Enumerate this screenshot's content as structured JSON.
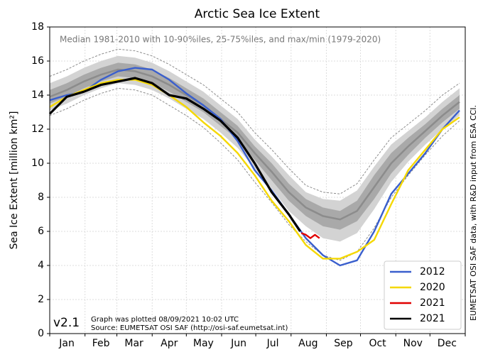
{
  "chart_data": {
    "type": "line",
    "title": "Arctic Sea Ice Extent",
    "subtitle": "Median 1981-2010 with 10-90%iles, 25-75%iles, and max/min (1979-2020)",
    "ylabel": "Sea Ice Extent [million km²]",
    "side_note": "EUMETSAT OSI SAF data, with R&D input from ESA CCI.",
    "version": "v2.1",
    "footnotes": [
      "Graph was plotted 08/09/2021 10:02 UTC",
      "Source: EUMETSAT OSI SAF (http://osi-saf.eumetsat.int)"
    ],
    "xlim": [
      1,
      366
    ],
    "xgrid": [
      1,
      32,
      60,
      91,
      121,
      152,
      182,
      213,
      244,
      274,
      305,
      335,
      366
    ],
    "xticks": [
      {
        "value": 16,
        "label": "Jan"
      },
      {
        "value": 46,
        "label": "Feb"
      },
      {
        "value": 75,
        "label": "Mar"
      },
      {
        "value": 106,
        "label": "Apr"
      },
      {
        "value": 136,
        "label": "May"
      },
      {
        "value": 167,
        "label": "Jun"
      },
      {
        "value": 197,
        "label": "Jul"
      },
      {
        "value": 228,
        "label": "Aug"
      },
      {
        "value": 259,
        "label": "Sep"
      },
      {
        "value": 289,
        "label": "Oct"
      },
      {
        "value": 320,
        "label": "Nov"
      },
      {
        "value": 350,
        "label": "Dec"
      }
    ],
    "ylim": [
      0,
      18
    ],
    "yticks": [
      0,
      2,
      4,
      6,
      8,
      10,
      12,
      14,
      16,
      18
    ],
    "grid": true,
    "legend": "lower right",
    "x": [
      1,
      16,
      31,
      46,
      61,
      76,
      91,
      106,
      121,
      136,
      151,
      166,
      181,
      196,
      211,
      226,
      241,
      256,
      271,
      286,
      301,
      316,
      331,
      346,
      361
    ],
    "median": {
      "color": "#8c8c8c",
      "values": [
        13.9,
        14.3,
        14.8,
        15.2,
        15.5,
        15.4,
        15.1,
        14.6,
        14.0,
        13.4,
        12.6,
        11.8,
        10.6,
        9.5,
        8.3,
        7.4,
        6.9,
        6.7,
        7.2,
        8.6,
        10.0,
        11.0,
        11.9,
        12.8,
        13.6
      ]
    },
    "bands": [
      {
        "color": "#d3d3d3",
        "lower": [
          13.1,
          13.5,
          14.0,
          14.4,
          14.7,
          14.6,
          14.3,
          13.8,
          13.2,
          12.6,
          11.8,
          10.9,
          9.7,
          8.5,
          7.2,
          6.3,
          5.6,
          5.4,
          5.9,
          7.3,
          8.9,
          10.1,
          11.1,
          12.0,
          12.8
        ],
        "upper": [
          14.7,
          15.1,
          15.6,
          16.0,
          16.3,
          16.2,
          15.9,
          15.4,
          14.8,
          14.2,
          13.4,
          12.6,
          11.4,
          10.4,
          9.3,
          8.3,
          7.9,
          7.8,
          8.4,
          9.8,
          11.1,
          11.9,
          12.7,
          13.6,
          14.4
        ]
      },
      {
        "color": "#a9a9a9",
        "lower": [
          13.5,
          13.9,
          14.4,
          14.8,
          15.1,
          15.0,
          14.7,
          14.2,
          13.6,
          13.0,
          12.2,
          11.4,
          10.2,
          9.0,
          7.8,
          6.9,
          6.3,
          6.1,
          6.6,
          7.9,
          9.4,
          10.5,
          11.5,
          12.4,
          13.2
        ],
        "upper": [
          14.3,
          14.7,
          15.2,
          15.6,
          15.9,
          15.8,
          15.5,
          15.0,
          14.4,
          13.8,
          13.0,
          12.2,
          11.0,
          10.0,
          8.8,
          7.9,
          7.4,
          7.2,
          7.8,
          9.3,
          10.6,
          11.5,
          12.3,
          13.2,
          14.0
        ]
      }
    ],
    "extremes": {
      "color": "#8c8c8c",
      "min": [
        12.8,
        13.2,
        13.7,
        14.1,
        14.4,
        14.3,
        14.0,
        13.4,
        12.8,
        12.1,
        11.2,
        10.2,
        8.9,
        7.7,
        6.4,
        5.4,
        4.6,
        4.3,
        4.8,
        6.2,
        8.0,
        9.3,
        10.5,
        11.6,
        12.5
      ],
      "max": [
        15.1,
        15.5,
        16.0,
        16.4,
        16.7,
        16.6,
        16.3,
        15.8,
        15.2,
        14.6,
        13.8,
        13.0,
        11.8,
        10.8,
        9.7,
        8.7,
        8.3,
        8.2,
        8.8,
        10.2,
        11.5,
        12.3,
        13.1,
        14.0,
        14.7
      ]
    },
    "series": [
      {
        "name": "2012",
        "color": "#3a5fcd",
        "values": [
          13.7,
          14.0,
          14.2,
          14.9,
          15.4,
          15.6,
          15.5,
          14.9,
          14.1,
          13.4,
          12.6,
          11.3,
          9.6,
          8.4,
          7.0,
          5.6,
          4.6,
          4.0,
          4.3,
          6.0,
          8.2,
          9.4,
          10.6,
          12.0,
          13.1
        ]
      },
      {
        "name": "2020",
        "color": "#f5d800",
        "values": [
          13.3,
          13.9,
          14.3,
          14.7,
          14.9,
          14.9,
          14.6,
          14.0,
          13.3,
          12.4,
          11.6,
          10.6,
          9.3,
          7.8,
          6.6,
          5.2,
          4.4,
          4.4,
          4.8,
          5.5,
          7.6,
          9.6,
          10.8,
          12.0,
          12.7
        ]
      },
      {
        "name": "2021",
        "color": "#e00000",
        "x": [
          222,
          226,
          230,
          234,
          238
        ],
        "values": [
          5.9,
          5.8,
          5.6,
          5.8,
          5.6
        ]
      },
      {
        "name": "2021",
        "color": "#000000",
        "x": [
          1,
          16,
          31,
          46,
          61,
          76,
          91,
          106,
          121,
          136,
          151,
          166,
          181,
          196,
          211,
          221
        ],
        "values": [
          12.9,
          13.9,
          14.2,
          14.6,
          14.8,
          15.0,
          14.7,
          14.0,
          13.8,
          13.2,
          12.5,
          11.5,
          10.0,
          8.3,
          7.0,
          6.0
        ]
      }
    ]
  }
}
